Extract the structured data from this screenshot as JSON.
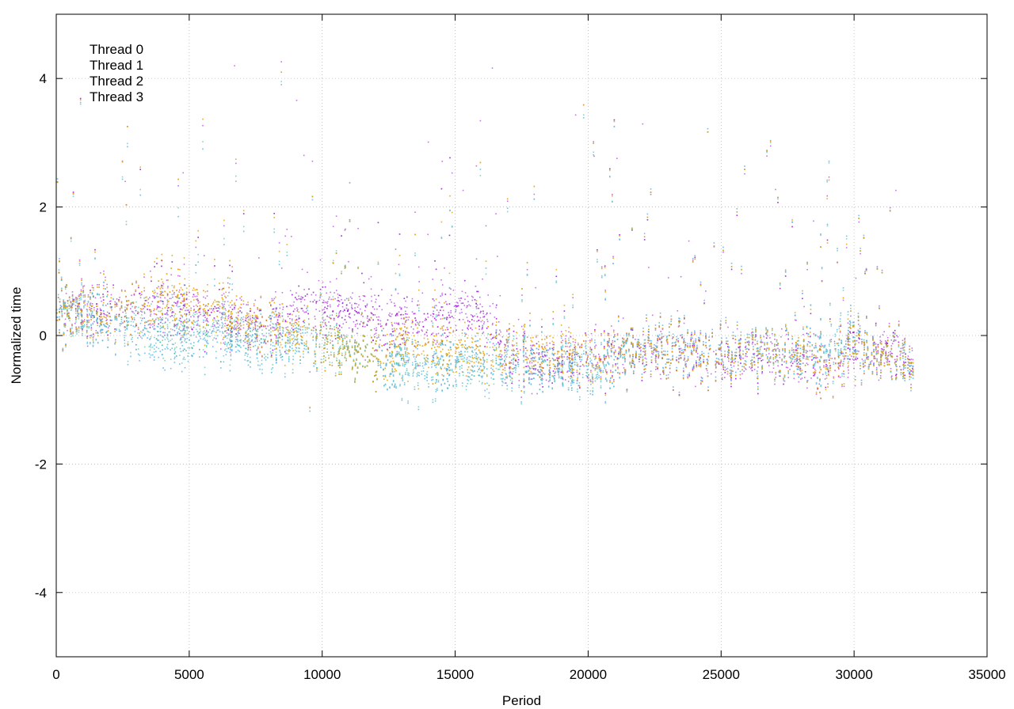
{
  "chart_data": {
    "type": "scatter",
    "title": "",
    "xlabel": "Period",
    "ylabel": "Normalized time",
    "xlim": [
      0,
      35000
    ],
    "ylim": [
      -5,
      5
    ],
    "x_ticks": [
      0,
      5000,
      10000,
      15000,
      20000,
      25000,
      30000,
      35000
    ],
    "y_ticks": [
      -4,
      -2,
      0,
      2,
      4
    ],
    "x_tick_labels": [
      "0",
      "5000",
      "10000",
      "15000",
      "20000",
      "25000",
      "30000",
      "35000"
    ],
    "y_tick_labels": [
      "-4",
      "-2",
      "0",
      "2",
      "4"
    ],
    "grid": true,
    "legend_position": "top-left",
    "x_max_data": 32200,
    "series": [
      {
        "name": "Thread 0",
        "color": "#9400d3",
        "trend": [
          [
            0,
            0.35
          ],
          [
            2000,
            0.4
          ],
          [
            4000,
            0.45
          ],
          [
            6000,
            0.3
          ],
          [
            8000,
            0.1
          ],
          [
            9500,
            0.5
          ],
          [
            11000,
            0.35
          ],
          [
            12500,
            0.2
          ],
          [
            14000,
            0.2
          ],
          [
            15000,
            0.4
          ],
          [
            16000,
            0.35
          ],
          [
            17000,
            -0.35
          ],
          [
            19000,
            -0.4
          ],
          [
            21000,
            -0.25
          ],
          [
            23000,
            -0.25
          ],
          [
            25000,
            -0.3
          ],
          [
            27000,
            -0.35
          ],
          [
            29000,
            -0.5
          ],
          [
            30500,
            -0.2
          ],
          [
            32200,
            -0.3
          ]
        ]
      },
      {
        "name": "Thread 1",
        "color": "#009e73",
        "trend": [
          [
            0,
            0.35
          ],
          [
            2000,
            0.2
          ],
          [
            4000,
            0.05
          ],
          [
            6000,
            0.1
          ],
          [
            8000,
            -0.1
          ],
          [
            10000,
            -0.05
          ],
          [
            12000,
            -0.4
          ],
          [
            14000,
            -0.45
          ],
          [
            16000,
            -0.5
          ],
          [
            18000,
            -0.45
          ],
          [
            20000,
            -0.5
          ],
          [
            22000,
            -0.2
          ],
          [
            24000,
            -0.3
          ],
          [
            26000,
            -0.25
          ],
          [
            28000,
            -0.35
          ],
          [
            30000,
            -0.2
          ],
          [
            32200,
            -0.35
          ]
        ]
      },
      {
        "name": "Thread 2",
        "color": "#56b4e9",
        "trend": [
          [
            0,
            0.4
          ],
          [
            2000,
            0.2
          ],
          [
            4000,
            -0.1
          ],
          [
            6000,
            0.0
          ],
          [
            8000,
            -0.15
          ],
          [
            10000,
            -0.1
          ],
          [
            12000,
            -0.4
          ],
          [
            14000,
            -0.5
          ],
          [
            16000,
            -0.4
          ],
          [
            18000,
            -0.45
          ],
          [
            20000,
            -0.55
          ],
          [
            22000,
            -0.15
          ],
          [
            24000,
            -0.25
          ],
          [
            26000,
            -0.2
          ],
          [
            28000,
            -0.35
          ],
          [
            30000,
            -0.15
          ],
          [
            32200,
            -0.4
          ]
        ]
      },
      {
        "name": "Thread 3",
        "color": "#e69f00",
        "trend": [
          [
            0,
            0.35
          ],
          [
            2000,
            0.35
          ],
          [
            4000,
            0.55
          ],
          [
            6000,
            0.4
          ],
          [
            8000,
            0.1
          ],
          [
            10000,
            -0.1
          ],
          [
            12000,
            -0.4
          ],
          [
            13000,
            -0.1
          ],
          [
            14000,
            -0.2
          ],
          [
            16000,
            -0.3
          ],
          [
            18000,
            -0.25
          ],
          [
            20000,
            -0.35
          ],
          [
            22000,
            -0.2
          ],
          [
            24000,
            -0.3
          ],
          [
            26000,
            -0.25
          ],
          [
            28000,
            -0.3
          ],
          [
            29000,
            -0.55
          ],
          [
            30000,
            -0.2
          ],
          [
            32200,
            -0.35
          ]
        ]
      }
    ]
  }
}
